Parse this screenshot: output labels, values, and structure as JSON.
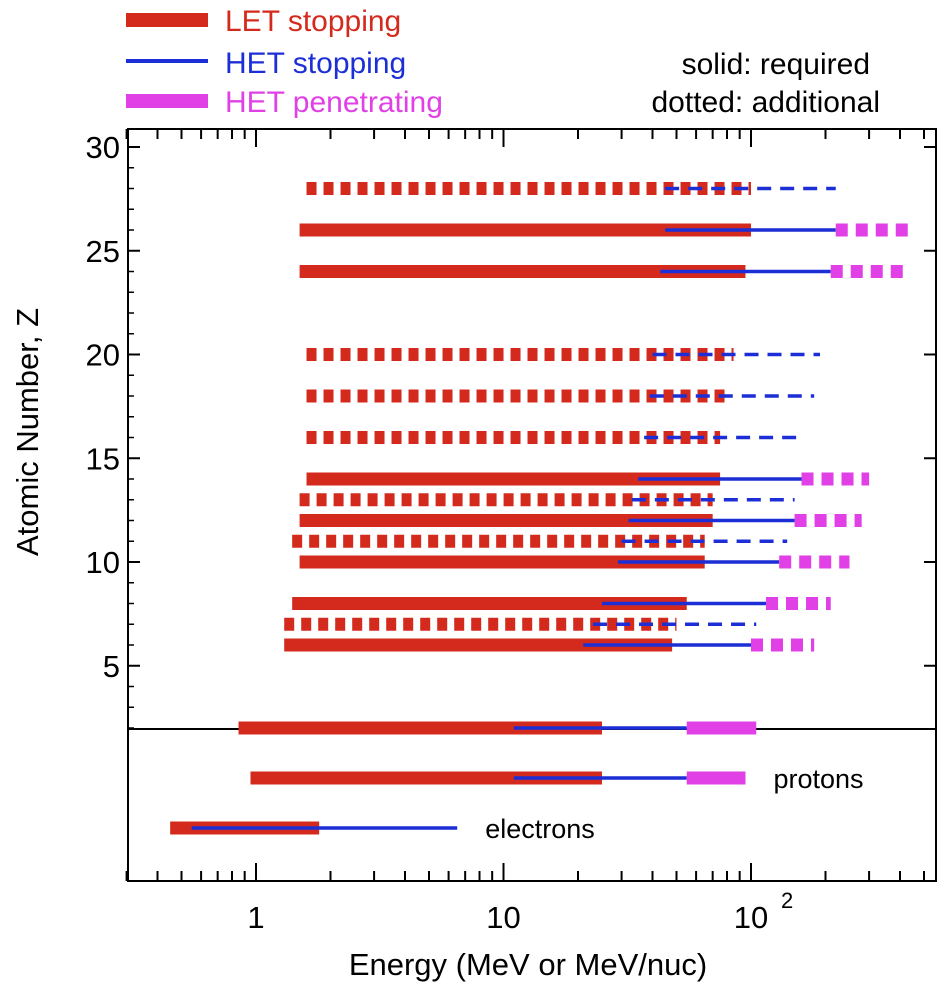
{
  "chart_data": {
    "type": "range-bar",
    "xlabel": "Energy  (MeV or MeV/nuc)",
    "ylabel": "Atomic Number, Z",
    "xscale": "log",
    "xlim": [
      0.3,
      500
    ],
    "ylim": [
      1,
      30
    ],
    "x_ticks": [
      {
        "value": 1,
        "label": "1"
      },
      {
        "value": 10,
        "label": "10"
      },
      {
        "value": 100,
        "label": "10",
        "sup": "2"
      }
    ],
    "y_ticks": [
      5,
      10,
      15,
      20,
      25,
      30
    ],
    "legend": {
      "position": "top-left",
      "entries": [
        {
          "key": "let",
          "label": "LET stopping",
          "color": "#d42a1e"
        },
        {
          "key": "het",
          "label": "HET stopping",
          "color": "#1c2fd6"
        },
        {
          "key": "hetp",
          "label": "HET penetrating",
          "color": "#e040e6"
        }
      ]
    },
    "notes": [
      "solid: required",
      "dotted: additional"
    ],
    "series_colors": {
      "let": "#d42a1e",
      "het": "#1c2fd6",
      "hetp": "#e040e6"
    },
    "ions": [
      {
        "z": 28,
        "style": "dotted",
        "let": [
          1.6,
          100
        ],
        "het": [
          45,
          220
        ]
      },
      {
        "z": 26,
        "style": "solid",
        "let": [
          1.5,
          100
        ],
        "het": [
          45,
          220
        ],
        "hetp": [
          220,
          450
        ]
      },
      {
        "z": 24,
        "style": "solid",
        "let": [
          1.5,
          95
        ],
        "het": [
          43,
          210
        ],
        "hetp": [
          210,
          430
        ]
      },
      {
        "z": 20,
        "style": "dotted",
        "let": [
          1.6,
          85
        ],
        "het": [
          40,
          190
        ]
      },
      {
        "z": 18,
        "style": "dotted",
        "let": [
          1.6,
          80
        ],
        "het": [
          39,
          180
        ]
      },
      {
        "z": 16,
        "style": "dotted",
        "let": [
          1.6,
          75
        ],
        "het": [
          37,
          165
        ]
      },
      {
        "z": 14,
        "style": "solid",
        "let": [
          1.6,
          75
        ],
        "het": [
          35,
          160
        ],
        "hetp": [
          160,
          300
        ]
      },
      {
        "z": 13,
        "style": "dotted",
        "let": [
          1.5,
          70
        ],
        "het": [
          33,
          150
        ]
      },
      {
        "z": 12,
        "style": "solid",
        "let": [
          1.5,
          70
        ],
        "het": [
          32,
          150
        ],
        "hetp": [
          150,
          280
        ]
      },
      {
        "z": 11,
        "style": "dotted",
        "let": [
          1.4,
          65
        ],
        "het": [
          30,
          140
        ]
      },
      {
        "z": 10,
        "style": "solid",
        "let": [
          1.5,
          65
        ],
        "het": [
          29,
          130
        ],
        "hetp": [
          130,
          250
        ]
      },
      {
        "z": 8,
        "style": "solid",
        "let": [
          1.4,
          55
        ],
        "het": [
          25,
          115
        ],
        "hetp": [
          115,
          210
        ]
      },
      {
        "z": 7,
        "style": "dotted",
        "let": [
          1.3,
          50
        ],
        "het": [
          23,
          105
        ]
      },
      {
        "z": 6,
        "style": "solid",
        "let": [
          1.3,
          48
        ],
        "het": [
          21,
          100
        ],
        "hetp": [
          100,
          180
        ]
      },
      {
        "z": 2,
        "style": "solid",
        "let": [
          0.85,
          25
        ],
        "het": [
          11,
          55
        ],
        "hetp": [
          55,
          105
        ]
      }
    ],
    "particles": [
      {
        "name": "protons",
        "style": "solid",
        "let": [
          0.95,
          25
        ],
        "het": [
          11,
          55
        ],
        "hetp": [
          55,
          95
        ]
      },
      {
        "name": "electrons",
        "style": "solid",
        "let": [
          0.45,
          1.8
        ],
        "het": [
          0.55,
          6.5
        ]
      }
    ]
  }
}
